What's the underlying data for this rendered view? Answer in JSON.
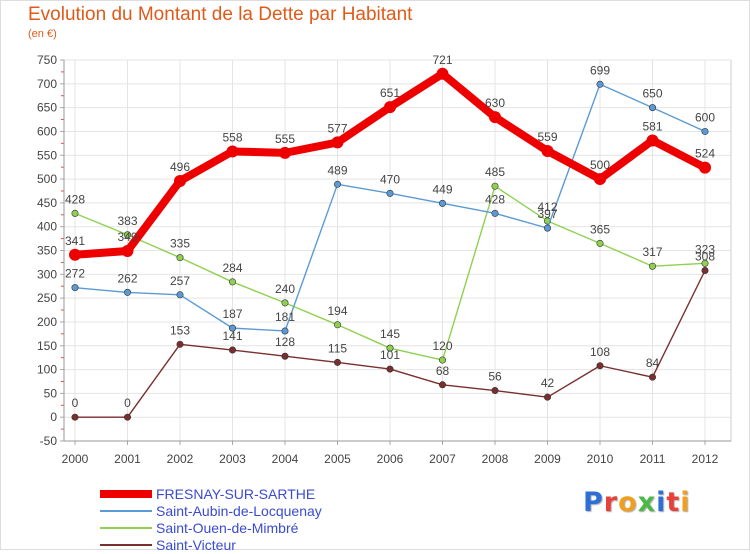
{
  "title": "Evolution du Montant de la Dette par Habitant",
  "unit": "(en €)",
  "brand": {
    "text": "Proxiti",
    "letter_colors": [
      "#2e6fd6",
      "#e8403a",
      "#f0a020",
      "#4cb848",
      "#2e6fd6",
      "#e8403a",
      "#f0a020"
    ]
  },
  "chart_data": {
    "type": "line",
    "x": [
      "2000",
      "2001",
      "2002",
      "2003",
      "2004",
      "2005",
      "2006",
      "2007",
      "2008",
      "2009",
      "2010",
      "2011",
      "2012"
    ],
    "ylim": [
      -50,
      750
    ],
    "yticks": [
      -50,
      0,
      50,
      100,
      150,
      200,
      250,
      300,
      350,
      400,
      450,
      500,
      550,
      600,
      650,
      700,
      750
    ],
    "grid": true,
    "legend_position": "bottom-left",
    "series": [
      {
        "name": "FRESNAY-SUR-SARTHE",
        "color": "#ee0000",
        "values": [
          341,
          349,
          496,
          558,
          555,
          577,
          651,
          721,
          630,
          559,
          500,
          581,
          524
        ],
        "labels": [
          "341",
          "349",
          "496",
          "558",
          "555",
          "577",
          "651",
          "721",
          "630",
          "559",
          "500",
          "581",
          "524"
        ]
      },
      {
        "name": "Saint-Aubin-de-Locquenay",
        "color": "#5b9bd5",
        "values": [
          272,
          262,
          257,
          187,
          181,
          489,
          470,
          449,
          428,
          397,
          699,
          650,
          600
        ],
        "labels": [
          "272",
          "262",
          "257",
          "187",
          "181",
          "489",
          "470",
          "449",
          "428",
          "397",
          "699",
          "650",
          "600"
        ]
      },
      {
        "name": "Saint-Ouen-de-Mimbré",
        "color": "#8fd14f",
        "values": [
          428,
          383,
          335,
          284,
          240,
          194,
          145,
          120,
          485,
          412,
          365,
          317,
          323
        ],
        "labels": [
          "428",
          "383",
          "335",
          "284",
          "240",
          "194",
          "145",
          "120",
          "485",
          "412",
          "365",
          "317",
          "323"
        ]
      },
      {
        "name": "Saint-Victeur",
        "color": "#7a2e2e",
        "values": [
          0,
          0,
          153,
          141,
          128,
          115,
          101,
          68,
          56,
          42,
          108,
          84,
          308
        ],
        "labels": [
          "0",
          "0",
          "153",
          "141",
          "128",
          "115",
          "101",
          "68",
          "56",
          "42",
          "108",
          "84",
          "308"
        ]
      }
    ]
  }
}
